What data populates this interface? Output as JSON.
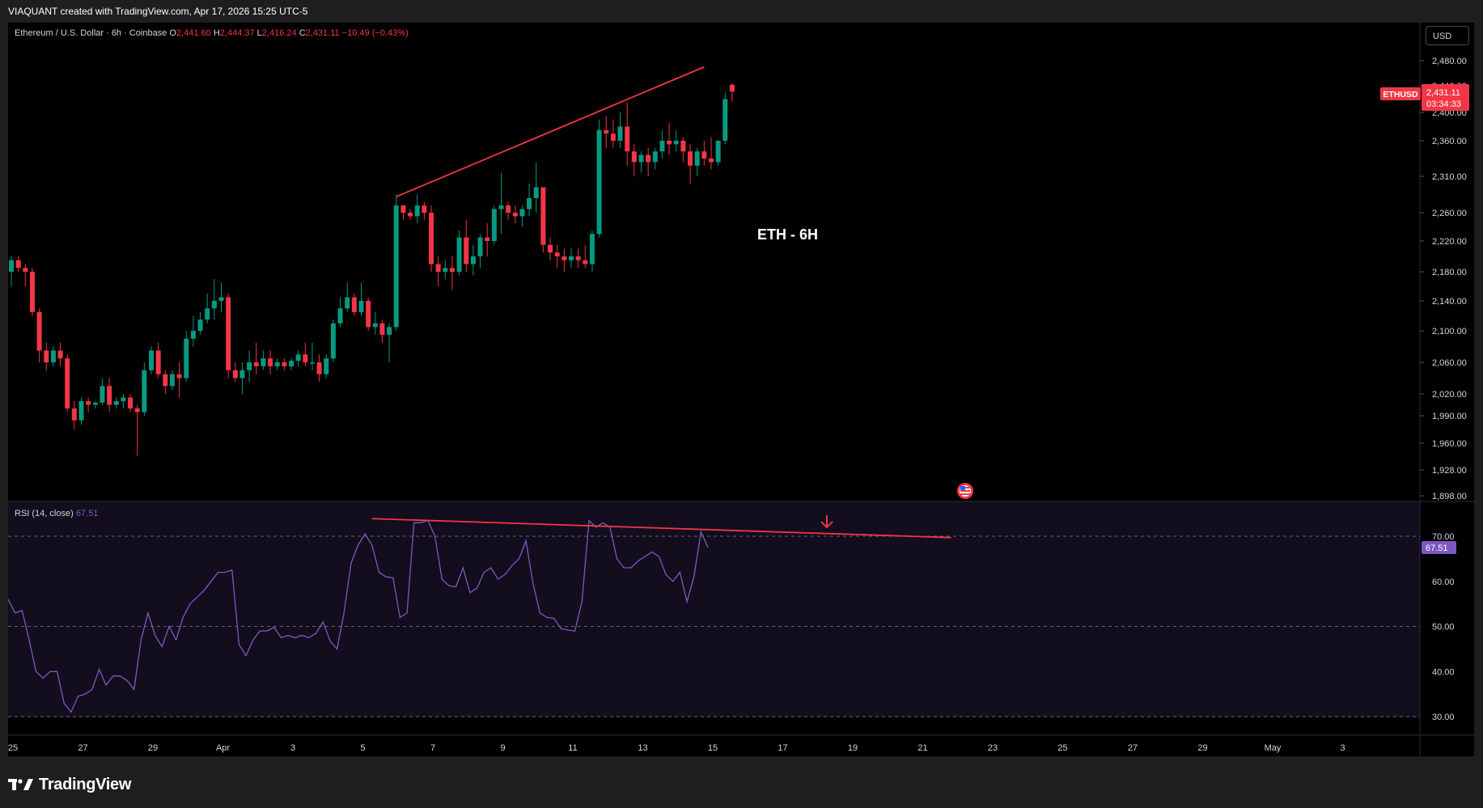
{
  "header": {
    "attribution": "VIAQUANT created with TradingView.com, Apr 17, 2026 15:25 UTC-5"
  },
  "symbol_bar": {
    "name": "Ethereum / U.S. Dollar · 6h · Coinbase",
    "o_label": "O",
    "o_value": "2,441.60",
    "h_label": "H",
    "h_value": "2,444.37",
    "l_label": "L",
    "l_value": "2,416.24",
    "c_label": "C",
    "c_value": "2,431.11",
    "change": "−10.49 (−0.43%)"
  },
  "currency_button": "USD",
  "price_tag": {
    "symbol": "ETHUSD",
    "price": "2,431.11",
    "countdown": "03:34:33"
  },
  "annotation": "ETH - 6H",
  "rsi_header": {
    "label": "RSI (14, close)",
    "value": "67.51"
  },
  "rsi_tag": "67.51",
  "footer": {
    "brand": "TradingView"
  },
  "colors": {
    "up": "#089981",
    "down": "#f23645",
    "rsi_line": "#7e57c2",
    "rsi_band": "#120e1d",
    "trendline": "#f23645",
    "background": "#000000"
  },
  "chart_data": [
    {
      "type": "candlestick",
      "title": "Ethereum / U.S. Dollar · 6h · Coinbase",
      "ylim": [
        1880,
        2480
      ],
      "y_ticks": [
        "2,480.00",
        "2,440.00",
        "2,400.00",
        "2,360.00",
        "2,310.00",
        "2,260.00",
        "2,220.00",
        "2,180.00",
        "2,140.00",
        "2,100.00",
        "2,060.00",
        "2,020.00",
        "1,990.00",
        "1,960.00",
        "1,928.00",
        "1,898.00"
      ],
      "x_ticks": [
        "25",
        "27",
        "29",
        "Apr",
        "3",
        "5",
        "7",
        "9",
        "11",
        "13",
        "15",
        "17",
        "19",
        "21",
        "23",
        "25",
        "27",
        "29",
        "May",
        "3"
      ],
      "candles": [
        [
          2180,
          2200,
          2160,
          2195
        ],
        [
          2195,
          2200,
          2180,
          2185
        ],
        [
          2185,
          2190,
          2160,
          2180
        ],
        [
          2180,
          2185,
          2120,
          2125
        ],
        [
          2125,
          2130,
          2060,
          2075
        ],
        [
          2075,
          2085,
          2050,
          2060
        ],
        [
          2060,
          2080,
          2055,
          2075
        ],
        [
          2075,
          2085,
          2055,
          2065
        ],
        [
          2065,
          2070,
          1995,
          2000
        ],
        [
          2000,
          2010,
          1975,
          1985
        ],
        [
          1985,
          2015,
          1980,
          2010
        ],
        [
          2010,
          2015,
          1995,
          2005
        ],
        [
          2005,
          2010,
          2000,
          2008
        ],
        [
          2008,
          2040,
          2005,
          2030
        ],
        [
          2030,
          2040,
          1995,
          2005
        ],
        [
          2005,
          2015,
          2000,
          2010
        ],
        [
          2010,
          2020,
          2000,
          2015
        ],
        [
          2015,
          2020,
          1995,
          2000
        ],
        [
          2000,
          2005,
          1945,
          1995
        ],
        [
          1995,
          2060,
          1990,
          2050
        ],
        [
          2050,
          2080,
          2045,
          2075
        ],
        [
          2075,
          2085,
          2040,
          2045
        ],
        [
          2045,
          2050,
          2020,
          2030
        ],
        [
          2030,
          2050,
          2025,
          2045
        ],
        [
          2045,
          2060,
          2015,
          2040
        ],
        [
          2040,
          2100,
          2035,
          2090
        ],
        [
          2090,
          2120,
          2080,
          2100
        ],
        [
          2100,
          2125,
          2095,
          2115
        ],
        [
          2115,
          2150,
          2110,
          2130
        ],
        [
          2130,
          2170,
          2115,
          2140
        ],
        [
          2140,
          2165,
          2125,
          2145
        ],
        [
          2145,
          2150,
          2040,
          2050
        ],
        [
          2050,
          2060,
          2035,
          2040
        ],
        [
          2040,
          2060,
          2020,
          2050
        ],
        [
          2050,
          2075,
          2035,
          2060
        ],
        [
          2060,
          2085,
          2045,
          2055
        ],
        [
          2055,
          2075,
          2050,
          2065
        ],
        [
          2065,
          2075,
          2045,
          2055
        ],
        [
          2055,
          2065,
          2050,
          2060
        ],
        [
          2060,
          2065,
          2050,
          2055
        ],
        [
          2055,
          2065,
          2050,
          2062
        ],
        [
          2062,
          2075,
          2055,
          2070
        ],
        [
          2070,
          2085,
          2055,
          2060
        ],
        [
          2060,
          2085,
          2050,
          2060
        ],
        [
          2060,
          2070,
          2035,
          2045
        ],
        [
          2045,
          2070,
          2040,
          2065
        ],
        [
          2065,
          2115,
          2060,
          2110
        ],
        [
          2110,
          2145,
          2105,
          2130
        ],
        [
          2130,
          2165,
          2125,
          2145
        ],
        [
          2145,
          2150,
          2120,
          2125
        ],
        [
          2125,
          2165,
          2120,
          2140
        ],
        [
          2140,
          2145,
          2100,
          2105
        ],
        [
          2105,
          2125,
          2095,
          2110
        ],
        [
          2110,
          2115,
          2085,
          2095
        ],
        [
          2095,
          2110,
          2060,
          2105
        ],
        [
          2105,
          2285,
          2100,
          2270
        ],
        [
          2270,
          2270,
          2250,
          2260
        ],
        [
          2260,
          2265,
          2250,
          2255
        ],
        [
          2255,
          2285,
          2245,
          2270
        ],
        [
          2270,
          2275,
          2250,
          2260
        ],
        [
          2260,
          2270,
          2180,
          2190
        ],
        [
          2190,
          2200,
          2160,
          2180
        ],
        [
          2180,
          2195,
          2170,
          2185
        ],
        [
          2185,
          2200,
          2155,
          2180
        ],
        [
          2180,
          2235,
          2175,
          2225
        ],
        [
          2225,
          2250,
          2180,
          2190
        ],
        [
          2190,
          2215,
          2175,
          2200
        ],
        [
          2200,
          2230,
          2185,
          2225
        ],
        [
          2225,
          2245,
          2200,
          2220
        ],
        [
          2220,
          2270,
          2215,
          2265
        ],
        [
          2265,
          2315,
          2230,
          2270
        ],
        [
          2270,
          2275,
          2250,
          2260
        ],
        [
          2260,
          2270,
          2245,
          2255
        ],
        [
          2255,
          2270,
          2240,
          2265
        ],
        [
          2265,
          2300,
          2255,
          2280
        ],
        [
          2280,
          2330,
          2260,
          2295
        ],
        [
          2295,
          2295,
          2205,
          2215
        ],
        [
          2215,
          2225,
          2195,
          2205
        ],
        [
          2205,
          2215,
          2185,
          2200
        ],
        [
          2200,
          2210,
          2180,
          2195
        ],
        [
          2195,
          2210,
          2185,
          2200
        ],
        [
          2200,
          2210,
          2185,
          2195
        ],
        [
          2195,
          2215,
          2185,
          2190
        ],
        [
          2190,
          2235,
          2180,
          2230
        ],
        [
          2230,
          2390,
          2225,
          2375
        ],
        [
          2375,
          2395,
          2350,
          2370
        ],
        [
          2370,
          2390,
          2350,
          2360
        ],
        [
          2360,
          2400,
          2350,
          2380
        ],
        [
          2380,
          2415,
          2325,
          2345
        ],
        [
          2345,
          2355,
          2310,
          2330
        ],
        [
          2330,
          2345,
          2315,
          2340
        ],
        [
          2340,
          2350,
          2310,
          2330
        ],
        [
          2330,
          2350,
          2320,
          2345
        ],
        [
          2345,
          2375,
          2335,
          2360
        ],
        [
          2360,
          2385,
          2340,
          2355
        ],
        [
          2355,
          2375,
          2345,
          2360
        ],
        [
          2360,
          2365,
          2330,
          2345
        ],
        [
          2345,
          2355,
          2300,
          2325
        ],
        [
          2325,
          2350,
          2310,
          2345
        ],
        [
          2345,
          2360,
          2325,
          2335
        ],
        [
          2335,
          2365,
          2320,
          2330
        ],
        [
          2330,
          2360,
          2325,
          2360
        ],
        [
          2360,
          2430,
          2355,
          2420
        ],
        [
          2441.6,
          2444.37,
          2416.24,
          2431.11
        ]
      ],
      "trendline": {
        "from": [
          55,
          2282
        ],
        "to": [
          99,
          2470
        ]
      },
      "last_price": 2431.11,
      "annotation": "ETH - 6H"
    },
    {
      "type": "line",
      "title": "RSI (14, close)",
      "ylim": [
        28,
        75
      ],
      "y_ticks": [
        "70.00",
        "60.00",
        "50.00",
        "40.00",
        "30.00"
      ],
      "levels": [
        70,
        50,
        30
      ],
      "series": [
        {
          "name": "RSI (14, close)",
          "values": [
            56,
            53,
            53.5,
            47,
            40,
            38.5,
            40,
            40,
            33,
            31,
            34.5,
            35,
            36,
            40.5,
            37,
            39,
            39,
            38,
            36,
            47,
            53,
            48,
            45.5,
            50,
            47,
            52,
            55,
            56.5,
            58,
            60,
            62,
            62,
            62.5,
            46,
            43.5,
            47,
            49,
            49,
            49.8,
            47.5,
            48,
            47.5,
            48,
            47.5,
            48.5,
            51,
            46.8,
            45,
            53,
            64,
            68,
            70.5,
            68,
            62,
            61,
            60.8,
            52,
            53,
            73,
            73,
            73.5,
            70,
            60.5,
            59,
            58.8,
            63,
            57.5,
            58.5,
            62,
            63,
            60.5,
            61.5,
            63.5,
            65,
            69,
            59.5,
            53,
            52,
            51.8,
            49.5,
            49.2,
            49,
            55.5,
            73.5,
            72,
            73,
            72,
            65,
            63,
            63,
            64.5,
            65.5,
            66.5,
            65.5,
            61.5,
            60,
            62,
            55.5,
            61,
            71,
            67.51
          ]
        }
      ],
      "divergence_line": {
        "from": [
          52,
          73.9
        ],
        "to": [
          111,
          69.7
        ]
      },
      "last_value": 67.51
    }
  ]
}
